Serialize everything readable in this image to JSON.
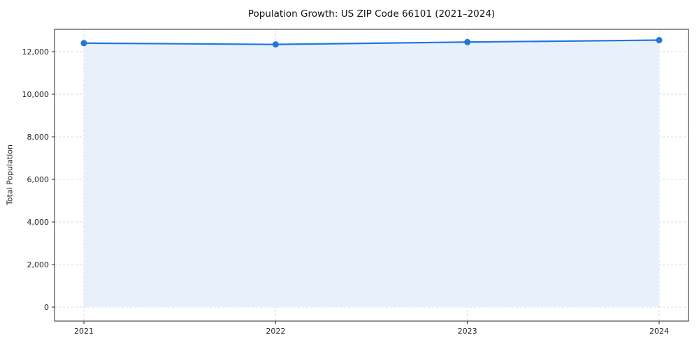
{
  "chart_data": {
    "type": "line",
    "title": "Population Growth: US ZIP Code 66101 (2021–2024)",
    "xlabel": "",
    "ylabel": "Total Population",
    "x": [
      2021,
      2022,
      2023,
      2024
    ],
    "x_tick_labels": [
      "2021",
      "2022",
      "2023",
      "2024"
    ],
    "series": [
      {
        "name": "Total Population",
        "values": [
          12400,
          12340,
          12450,
          12540
        ]
      }
    ],
    "yticks": [
      0,
      2000,
      4000,
      6000,
      8000,
      10000,
      12000
    ],
    "ylim": [
      0,
      13000
    ],
    "grid": true,
    "grid_style": "dashed",
    "legend": "none",
    "marker": "circle",
    "area_fill": true,
    "colors": {
      "line": "#2276d9",
      "marker": "#2276d9",
      "area": "#e8f1fb",
      "grid": "#d9d9d9",
      "spine": "#262626",
      "tick_text": "#222222"
    }
  }
}
